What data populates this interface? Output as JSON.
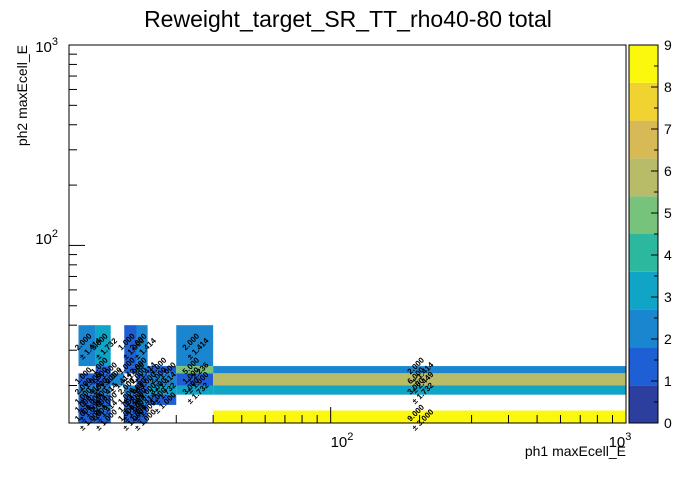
{
  "chart_data": {
    "type": "heatmap",
    "title": "Reweight_target_SR_TT_rho40-80 total",
    "xlabel": "ph1 maxEcell_E",
    "ylabel": "ph2 maxEcell_E",
    "x_scale": "log",
    "y_scale": "log",
    "xlim": [
      13,
      1000
    ],
    "ylim": [
      13,
      1000
    ],
    "x_tick_labels": [
      "10^2",
      "10^3"
    ],
    "y_tick_labels": [
      "10^2",
      "10^3"
    ],
    "zlim": [
      0,
      9
    ],
    "z_ticks": [
      "0",
      "1",
      "2",
      "3",
      "4",
      "5",
      "6",
      "7",
      "8",
      "9"
    ],
    "x_edges": [
      14,
      16,
      18,
      20,
      22,
      24,
      30,
      40,
      1000
    ],
    "y_edges": [
      13,
      15,
      16,
      18,
      20,
      23,
      25,
      40,
      1000
    ],
    "cells": [
      {
        "ix": 0,
        "iy": 6,
        "value": 2,
        "label": "2.000",
        "err": "± 1.414"
      },
      {
        "ix": 1,
        "iy": 6,
        "value": 3,
        "label": "3.000",
        "err": "± 1.732"
      },
      {
        "ix": 3,
        "iy": 6,
        "value": 1,
        "label": "1.000",
        "err": "± 1.000"
      },
      {
        "ix": 4,
        "iy": 6,
        "value": 2,
        "label": "2.000",
        "err": "± 1.414"
      },
      {
        "ix": 6,
        "iy": 6,
        "value": 2,
        "label": "2.000",
        "err": "± 1.414"
      },
      {
        "ix": 1,
        "iy": 5,
        "value": 1,
        "label": "1.000",
        "err": "± 1.000"
      },
      {
        "ix": 3,
        "iy": 5,
        "value": 1,
        "label": "1.000",
        "err": "± 1.000"
      },
      {
        "ix": 4,
        "iy": 5,
        "value": 2,
        "label": "2.000",
        "err": "± 1.414"
      },
      {
        "ix": 5,
        "iy": 5,
        "value": 1,
        "label": "1.000",
        "err": "± 1.000"
      },
      {
        "ix": 6,
        "iy": 5,
        "value": 5,
        "label": "5.000",
        "err": "± 2.236"
      },
      {
        "ix": 7,
        "iy": 5,
        "value": 2,
        "label": "2.000",
        "err": "± 1.414"
      },
      {
        "ix": 0,
        "iy": 4,
        "value": 1,
        "label": "1.000",
        "err": "± 1.000"
      },
      {
        "ix": 1,
        "iy": 4,
        "value": 1,
        "label": "1.000",
        "err": "± 1.000"
      },
      {
        "ix": 2,
        "iy": 4,
        "value": 2,
        "label": "2.000",
        "err": "± 1.414"
      },
      {
        "ix": 4,
        "iy": 4,
        "value": 1,
        "label": "1.000",
        "err": "± 1.000"
      },
      {
        "ix": 5,
        "iy": 4,
        "value": 2,
        "label": "2.000",
        "err": "± 1.414"
      },
      {
        "ix": 6,
        "iy": 4,
        "value": 1,
        "label": "1.000",
        "err": "± 1.000"
      },
      {
        "ix": 7,
        "iy": 4,
        "value": 6,
        "label": "6.000",
        "err": "± 2.449"
      },
      {
        "ix": 0,
        "iy": 3,
        "value": 2,
        "label": "2.000",
        "err": "± 1.414"
      },
      {
        "ix": 1,
        "iy": 3,
        "value": 2,
        "label": "2.000",
        "err": "± 1.414"
      },
      {
        "ix": 3,
        "iy": 3,
        "value": 2,
        "label": "2.000",
        "err": "± 1.414"
      },
      {
        "ix": 4,
        "iy": 3,
        "value": 1,
        "label": "1.000",
        "err": "± 1.000"
      },
      {
        "ix": 5,
        "iy": 3,
        "value": 3,
        "label": "3.000",
        "err": "± 1.732"
      },
      {
        "ix": 6,
        "iy": 3,
        "value": 3,
        "label": "3.000",
        "err": "± 1.732"
      },
      {
        "ix": 7,
        "iy": 3,
        "value": 3,
        "label": "3.000",
        "err": "± 1.732"
      },
      {
        "ix": 0,
        "iy": 2,
        "value": 1,
        "label": "1.000",
        "err": "± 1.000"
      },
      {
        "ix": 1,
        "iy": 2,
        "value": 1,
        "label": "1.000",
        "err": "± 1.000"
      },
      {
        "ix": 3,
        "iy": 2,
        "value": 1,
        "label": "1.000",
        "err": "± 1.000"
      },
      {
        "ix": 4,
        "iy": 2,
        "value": 2,
        "label": "2.000",
        "err": "± 1.414"
      },
      {
        "ix": 5,
        "iy": 2,
        "value": 1,
        "label": "1.000",
        "err": "± 1.000"
      },
      {
        "ix": 0,
        "iy": 1,
        "value": 1,
        "label": "1.000",
        "err": "± 1.000"
      },
      {
        "ix": 1,
        "iy": 1,
        "value": 2,
        "label": "2.000",
        "err": "± 1.414"
      },
      {
        "ix": 3,
        "iy": 1,
        "value": 1,
        "label": "1.000",
        "err": "± 1.000"
      },
      {
        "ix": 4,
        "iy": 1,
        "value": 1,
        "label": "1.000",
        "err": "± 1.000"
      },
      {
        "ix": 0,
        "iy": 0,
        "value": 1,
        "label": "1.000",
        "err": "± 1.000"
      },
      {
        "ix": 1,
        "iy": 0,
        "value": 1,
        "label": "1.000",
        "err": "± 1.000"
      },
      {
        "ix": 3,
        "iy": 0,
        "value": 1,
        "label": "1.000",
        "err": "± 1.000"
      },
      {
        "ix": 4,
        "iy": 0,
        "value": 1,
        "label": "1.000",
        "err": "± 1.000"
      },
      {
        "ix": 7,
        "iy": 0,
        "value": 9,
        "label": "9.000",
        "err": "± 3.000"
      }
    ]
  },
  "palette": [
    "#2c3e9e",
    "#1f5fd6",
    "#1a86d0",
    "#10a4c6",
    "#2cb89e",
    "#78c37c",
    "#b8bc68",
    "#d7ba55",
    "#f0d230",
    "#fbf80e"
  ]
}
